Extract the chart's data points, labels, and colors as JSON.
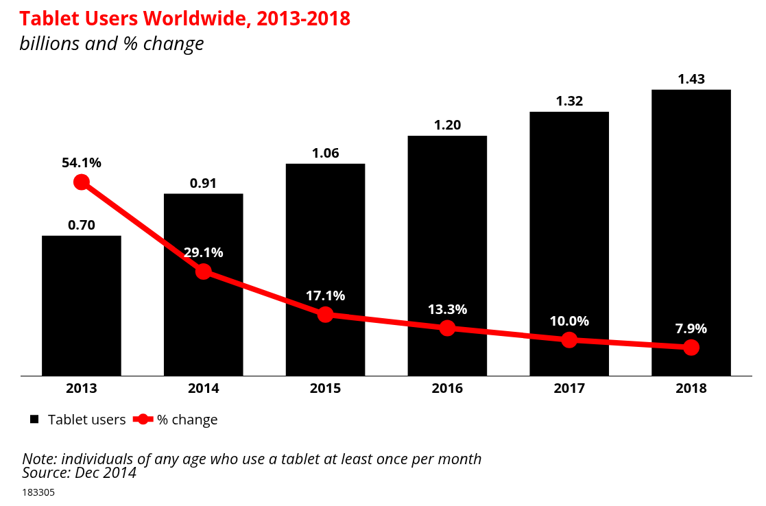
{
  "chart_data": {
    "type": "bar",
    "title": "Tablet Users Worldwide, 2013-2018",
    "subtitle": "billions and % change",
    "categories": [
      "2013",
      "2014",
      "2015",
      "2016",
      "2017",
      "2018"
    ],
    "series": [
      {
        "name": "Tablet users",
        "color": "#000000",
        "values": [
          0.7,
          0.91,
          1.06,
          1.2,
          1.32,
          1.43
        ],
        "value_labels": [
          "0.70",
          "0.91",
          "1.06",
          "1.20",
          "1.32",
          "1.43"
        ]
      },
      {
        "name": "% change",
        "type": "line",
        "axis": "y2",
        "color": "#ff0000",
        "values": [
          54.1,
          29.1,
          17.1,
          13.3,
          10.0,
          7.9
        ],
        "value_labels": [
          "54.1%",
          "29.1%",
          "17.1%",
          "13.3%",
          "10.0%",
          "7.9%"
        ]
      }
    ],
    "legend": "bottom left",
    "marker": "circle",
    "line_style": "solid",
    "grid": false,
    "annotations": [
      "Note: individuals of any age who use a tablet at least once per month",
      "Source: Dec 2014",
      "183305"
    ]
  }
}
